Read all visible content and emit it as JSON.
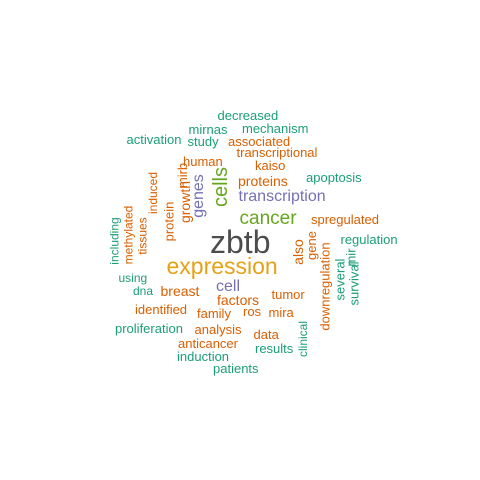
{
  "palette": {
    "gray": "#4d4d4d",
    "gold": "#e6a117",
    "green": "#66a61e",
    "purple": "#7570b3",
    "orange": "#d95f02",
    "teal": "#1b9e77"
  },
  "words": [
    {
      "text": "zbtb",
      "color": "gray"
    },
    {
      "text": "expression",
      "color": "gold"
    },
    {
      "text": "cancer",
      "color": "green"
    },
    {
      "text": "cells",
      "color": "green"
    },
    {
      "text": "transcription",
      "color": "purple"
    },
    {
      "text": "cell",
      "color": "purple"
    },
    {
      "text": "genes",
      "color": "purple"
    },
    {
      "text": "proteins",
      "color": "orange"
    },
    {
      "text": "factors",
      "color": "orange"
    },
    {
      "text": "breast",
      "color": "orange"
    },
    {
      "text": "growth",
      "color": "orange"
    },
    {
      "text": "protein",
      "color": "orange"
    },
    {
      "text": "mirb",
      "color": "orange"
    },
    {
      "text": "tumor",
      "color": "orange"
    },
    {
      "text": "also",
      "color": "orange"
    },
    {
      "text": "gene",
      "color": "orange"
    },
    {
      "text": "spregulated",
      "color": "orange"
    },
    {
      "text": "transcriptional",
      "color": "orange"
    },
    {
      "text": "associated",
      "color": "orange"
    },
    {
      "text": "kaiso",
      "color": "orange"
    },
    {
      "text": "human",
      "color": "orange"
    },
    {
      "text": "induced",
      "color": "orange"
    },
    {
      "text": "tissues",
      "color": "orange"
    },
    {
      "text": "methylated",
      "color": "orange"
    },
    {
      "text": "identified",
      "color": "orange"
    },
    {
      "text": "family",
      "color": "orange"
    },
    {
      "text": "ros",
      "color": "orange"
    },
    {
      "text": "mira",
      "color": "orange"
    },
    {
      "text": "downregulation",
      "color": "orange"
    },
    {
      "text": "data",
      "color": "orange"
    },
    {
      "text": "analysis",
      "color": "orange"
    },
    {
      "text": "anticancer",
      "color": "orange"
    },
    {
      "text": "decreased",
      "color": "teal"
    },
    {
      "text": "mirnas",
      "color": "teal"
    },
    {
      "text": "mechanism",
      "color": "teal"
    },
    {
      "text": "activation",
      "color": "teal"
    },
    {
      "text": "study",
      "color": "teal"
    },
    {
      "text": "apoptosis",
      "color": "teal"
    },
    {
      "text": "regulation",
      "color": "teal"
    },
    {
      "text": "including",
      "color": "teal"
    },
    {
      "text": "using",
      "color": "teal"
    },
    {
      "text": "dna",
      "color": "teal"
    },
    {
      "text": "several",
      "color": "teal"
    },
    {
      "text": "survival",
      "color": "teal"
    },
    {
      "text": "mir",
      "color": "teal"
    },
    {
      "text": "proliferation",
      "color": "teal"
    },
    {
      "text": "results",
      "color": "teal"
    },
    {
      "text": "clinical",
      "color": "teal"
    },
    {
      "text": "induction",
      "color": "teal"
    },
    {
      "text": "patients",
      "color": "teal"
    }
  ]
}
